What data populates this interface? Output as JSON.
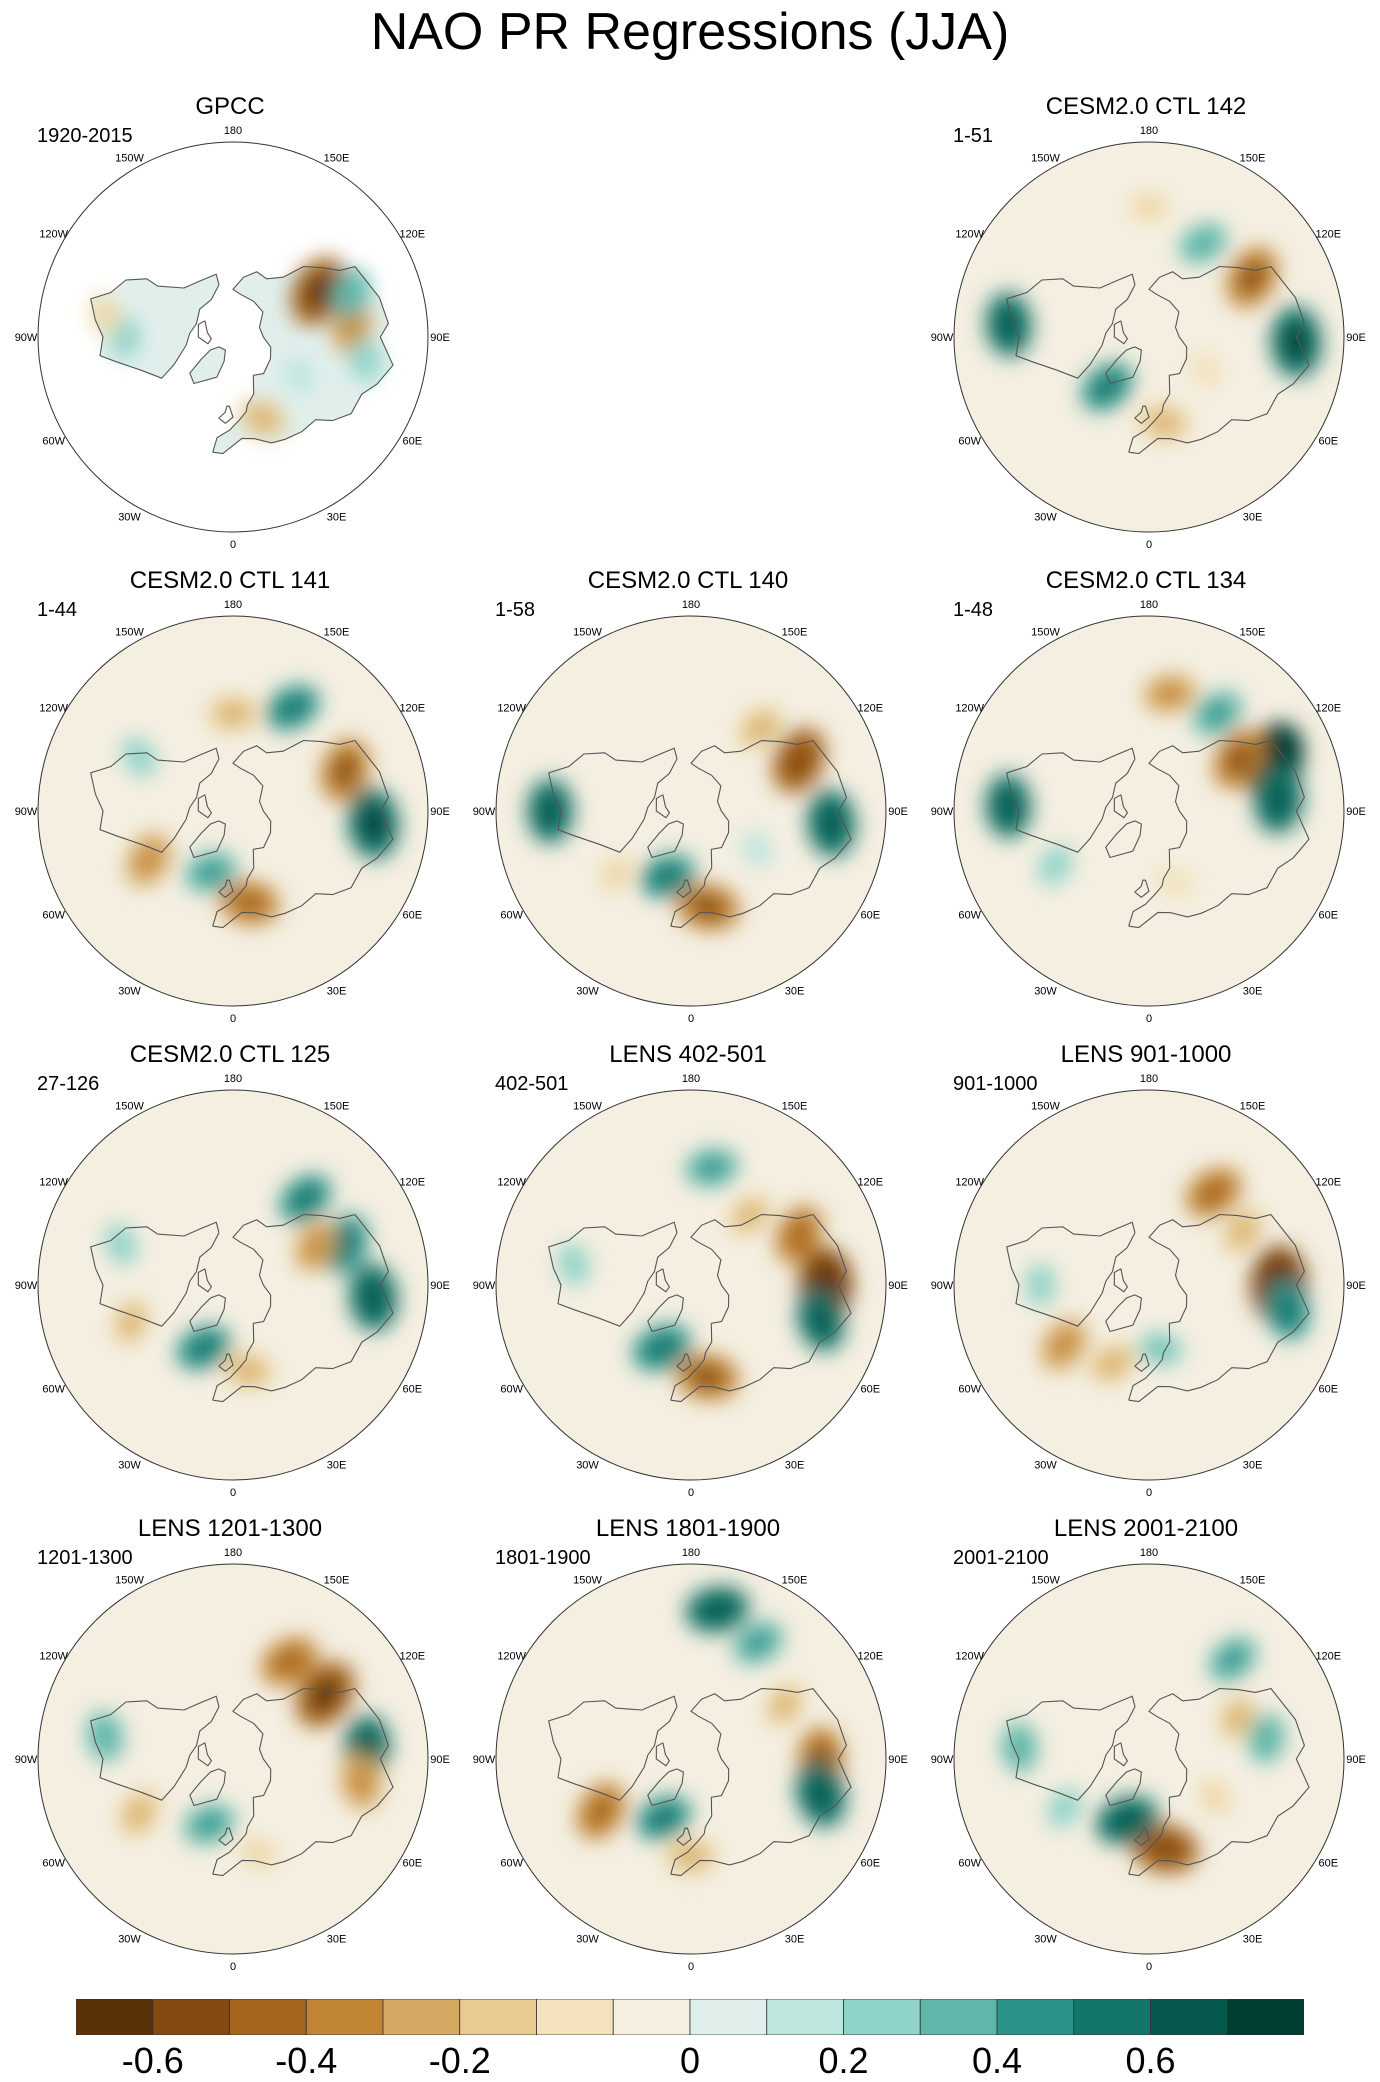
{
  "title": "NAO PR Regressions (JJA)",
  "lon_labels": [
    {
      "lon": 0,
      "text": "0"
    },
    {
      "lon": 30,
      "text": "30E"
    },
    {
      "lon": 60,
      "text": "60E"
    },
    {
      "lon": 90,
      "text": "90E"
    },
    {
      "lon": 120,
      "text": "120E"
    },
    {
      "lon": 150,
      "text": "150E"
    },
    {
      "lon": 180,
      "text": "180"
    },
    {
      "lon": -150,
      "text": "150W"
    },
    {
      "lon": -120,
      "text": "120W"
    },
    {
      "lon": -90,
      "text": "90W"
    },
    {
      "lon": -60,
      "text": "60W"
    },
    {
      "lon": -30,
      "text": "30W"
    }
  ],
  "panels": [
    {
      "row": 0,
      "col": 0,
      "title": "GPCC",
      "period": "1920-2015",
      "observed": true,
      "anomalies": [
        {
          "lon": 118,
          "lat": 45,
          "v": -0.6
        },
        {
          "lon": 95,
          "lat": 35,
          "v": -0.4
        },
        {
          "lon": 110,
          "lat": 32,
          "v": 0.3
        },
        {
          "lon": -90,
          "lat": 40,
          "v": 0.2
        },
        {
          "lon": -100,
          "lat": 30,
          "v": -0.2
        },
        {
          "lon": 20,
          "lat": 50,
          "v": -0.3
        },
        {
          "lon": 60,
          "lat": 55,
          "v": 0.15
        },
        {
          "lon": 80,
          "lat": 28,
          "v": 0.2
        }
      ]
    },
    {
      "row": 0,
      "col": 2,
      "title": "CESM2.0 CTL 142",
      "period": "1-51",
      "observed": false,
      "anomalies": [
        {
          "lon": 120,
          "lat": 35,
          "v": -0.5
        },
        {
          "lon": 88,
          "lat": 22,
          "v": 0.6
        },
        {
          "lon": -95,
          "lat": 25,
          "v": 0.5
        },
        {
          "lon": 150,
          "lat": 40,
          "v": 0.3
        },
        {
          "lon": 10,
          "lat": 50,
          "v": -0.3
        },
        {
          "lon": -40,
          "lat": 60,
          "v": 0.4
        },
        {
          "lon": 60,
          "lat": 60,
          "v": -0.15
        },
        {
          "lon": 180,
          "lat": 30,
          "v": -0.2
        }
      ]
    },
    {
      "row": 1,
      "col": 0,
      "title": "CESM2.0 CTL 141",
      "period": "1-44",
      "observed": false,
      "anomalies": [
        {
          "lon": 85,
          "lat": 25,
          "v": 0.6
        },
        {
          "lon": 110,
          "lat": 35,
          "v": -0.5
        },
        {
          "lon": 10,
          "lat": 47,
          "v": -0.45
        },
        {
          "lon": -60,
          "lat": 45,
          "v": -0.4
        },
        {
          "lon": 150,
          "lat": 35,
          "v": 0.4
        },
        {
          "lon": -20,
          "lat": 60,
          "v": 0.35
        },
        {
          "lon": 180,
          "lat": 45,
          "v": -0.3
        },
        {
          "lon": -120,
          "lat": 40,
          "v": 0.2
        }
      ]
    },
    {
      "row": 1,
      "col": 1,
      "title": "CESM2.0 CTL 140",
      "period": "1-58",
      "observed": false,
      "anomalies": [
        {
          "lon": 115,
          "lat": 35,
          "v": -0.55
        },
        {
          "lon": 85,
          "lat": 25,
          "v": 0.55
        },
        {
          "lon": 10,
          "lat": 45,
          "v": -0.5
        },
        {
          "lon": -90,
          "lat": 25,
          "v": 0.5
        },
        {
          "lon": -20,
          "lat": 58,
          "v": 0.4
        },
        {
          "lon": 140,
          "lat": 40,
          "v": -0.3
        },
        {
          "lon": -50,
          "lat": 45,
          "v": -0.2
        },
        {
          "lon": 60,
          "lat": 55,
          "v": 0.15
        }
      ]
    },
    {
      "row": 1,
      "col": 2,
      "title": "CESM2.0 CTL 134",
      "period": "1-48",
      "observed": false,
      "anomalies": [
        {
          "lon": 112,
          "lat": 28,
          "v": 0.7
        },
        {
          "lon": 95,
          "lat": 30,
          "v": 0.55
        },
        {
          "lon": 120,
          "lat": 42,
          "v": -0.5
        },
        {
          "lon": -92,
          "lat": 25,
          "v": 0.5
        },
        {
          "lon": 170,
          "lat": 35,
          "v": -0.35
        },
        {
          "lon": 145,
          "lat": 35,
          "v": 0.35
        },
        {
          "lon": -60,
          "lat": 40,
          "v": 0.2
        },
        {
          "lon": 20,
          "lat": 55,
          "v": -0.15
        }
      ]
    },
    {
      "row": 2,
      "col": 0,
      "title": "CESM2.0 CTL 125",
      "period": "27-126",
      "observed": false,
      "anomalies": [
        {
          "lon": 85,
          "lat": 25,
          "v": 0.55
        },
        {
          "lon": 110,
          "lat": 35,
          "v": 0.45
        },
        {
          "lon": 140,
          "lat": 38,
          "v": 0.4
        },
        {
          "lon": 115,
          "lat": 48,
          "v": -0.35
        },
        {
          "lon": -25,
          "lat": 58,
          "v": 0.4
        },
        {
          "lon": 10,
          "lat": 50,
          "v": -0.3
        },
        {
          "lon": -70,
          "lat": 40,
          "v": -0.25
        },
        {
          "lon": -110,
          "lat": 35,
          "v": 0.2
        }
      ]
    },
    {
      "row": 2,
      "col": 1,
      "title": "LENS 402-501",
      "period": "402-501",
      "observed": false,
      "anomalies": [
        {
          "lon": 90,
          "lat": 28,
          "v": -0.65
        },
        {
          "lon": 75,
          "lat": 28,
          "v": 0.5
        },
        {
          "lon": 115,
          "lat": 35,
          "v": -0.45
        },
        {
          "lon": 10,
          "lat": 47,
          "v": -0.5
        },
        {
          "lon": -25,
          "lat": 58,
          "v": 0.45
        },
        {
          "lon": 170,
          "lat": 35,
          "v": 0.35
        },
        {
          "lon": -100,
          "lat": 35,
          "v": 0.2
        },
        {
          "lon": 140,
          "lat": 48,
          "v": -0.25
        }
      ]
    },
    {
      "row": 2,
      "col": 2,
      "title": "LENS 901-1000",
      "period": "901-1000",
      "observed": false,
      "anomalies": [
        {
          "lon": 90,
          "lat": 30,
          "v": -0.7
        },
        {
          "lon": 80,
          "lat": 25,
          "v": 0.45
        },
        {
          "lon": 145,
          "lat": 38,
          "v": -0.45
        },
        {
          "lon": -55,
          "lat": 42,
          "v": -0.4
        },
        {
          "lon": -25,
          "lat": 50,
          "v": -0.3
        },
        {
          "lon": 10,
          "lat": 60,
          "v": 0.25
        },
        {
          "lon": 120,
          "lat": 40,
          "v": -0.3
        },
        {
          "lon": -90,
          "lat": 40,
          "v": 0.2
        }
      ]
    },
    {
      "row": 3,
      "col": 0,
      "title": "LENS 1201-1300",
      "period": "1201-1300",
      "observed": false,
      "anomalies": [
        {
          "lon": 125,
          "lat": 38,
          "v": -0.6
        },
        {
          "lon": 150,
          "lat": 38,
          "v": -0.45
        },
        {
          "lon": 95,
          "lat": 28,
          "v": 0.5
        },
        {
          "lon": 80,
          "lat": 30,
          "v": -0.4
        },
        {
          "lon": -60,
          "lat": 40,
          "v": -0.3
        },
        {
          "lon": -20,
          "lat": 58,
          "v": 0.35
        },
        {
          "lon": -100,
          "lat": 30,
          "v": 0.3
        },
        {
          "lon": 15,
          "lat": 45,
          "v": -0.2
        }
      ]
    },
    {
      "row": 3,
      "col": 1,
      "title": "LENS 1801-1900",
      "period": "1801-1900",
      "observed": false,
      "anomalies": [
        {
          "lon": 170,
          "lat": 20,
          "v": 0.5
        },
        {
          "lon": 150,
          "lat": 28,
          "v": 0.35
        },
        {
          "lon": 90,
          "lat": 30,
          "v": -0.5
        },
        {
          "lon": 75,
          "lat": 28,
          "v": 0.55
        },
        {
          "lon": -60,
          "lat": 42,
          "v": -0.45
        },
        {
          "lon": -25,
          "lat": 60,
          "v": 0.4
        },
        {
          "lon": 0,
          "lat": 45,
          "v": -0.3
        },
        {
          "lon": 120,
          "lat": 40,
          "v": -0.25
        }
      ]
    },
    {
      "row": 3,
      "col": 2,
      "title": "LENS 2001-2100",
      "period": "2001-2100",
      "observed": false,
      "anomalies": [
        {
          "lon": 10,
          "lat": 48,
          "v": -0.55
        },
        {
          "lon": -20,
          "lat": 60,
          "v": 0.5
        },
        {
          "lon": 140,
          "lat": 30,
          "v": 0.35
        },
        {
          "lon": 100,
          "lat": 35,
          "v": 0.3
        },
        {
          "lon": -95,
          "lat": 30,
          "v": 0.3
        },
        {
          "lon": 115,
          "lat": 45,
          "v": -0.25
        },
        {
          "lon": 60,
          "lat": 55,
          "v": -0.2
        },
        {
          "lon": -60,
          "lat": 45,
          "v": 0.2
        }
      ]
    }
  ],
  "colorbar": {
    "colors": [
      "#5a3109",
      "#834a11",
      "#a5651c",
      "#c28535",
      "#d5a962",
      "#e7cb90",
      "#f3e2bb",
      "#f4efe1",
      "#e1efec",
      "#bfe5df",
      "#90d3c8",
      "#5fb7aa",
      "#2c938a",
      "#14756b",
      "#055a4d",
      "#013d33"
    ],
    "labels": [
      {
        "index": 1,
        "text": "-0.6"
      },
      {
        "index": 3,
        "text": "-0.4"
      },
      {
        "index": 5,
        "text": "-0.2"
      },
      {
        "index": 8,
        "text": "0"
      },
      {
        "index": 10,
        "text": "0.2"
      },
      {
        "index": 12,
        "text": "0.4"
      },
      {
        "index": 14,
        "text": "0.6"
      }
    ]
  }
}
